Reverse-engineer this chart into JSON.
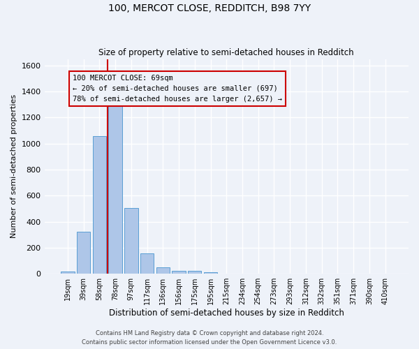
{
  "title1": "100, MERCOT CLOSE, REDDITCH, B98 7YY",
  "title2": "Size of property relative to semi-detached houses in Redditch",
  "xlabel": "Distribution of semi-detached houses by size in Redditch",
  "ylabel": "Number of semi-detached properties",
  "categories": [
    "19sqm",
    "39sqm",
    "58sqm",
    "78sqm",
    "97sqm",
    "117sqm",
    "136sqm",
    "156sqm",
    "175sqm",
    "195sqm",
    "215sqm",
    "234sqm",
    "254sqm",
    "273sqm",
    "293sqm",
    "312sqm",
    "332sqm",
    "351sqm",
    "371sqm",
    "390sqm",
    "410sqm"
  ],
  "values": [
    15,
    325,
    1055,
    1295,
    505,
    155,
    50,
    25,
    20,
    10,
    0,
    0,
    0,
    0,
    0,
    0,
    0,
    0,
    0,
    0,
    0
  ],
  "bar_color": "#aec6e8",
  "bar_edge_color": "#5a9fd4",
  "vline_x": 2.5,
  "vline_color": "#cc0000",
  "annotation_text": "100 MERCOT CLOSE: 69sqm\n← 20% of semi-detached houses are smaller (697)\n78% of semi-detached houses are larger (2,657) →",
  "annotation_box_color": "#cc0000",
  "ylim": [
    0,
    1650
  ],
  "yticks": [
    0,
    200,
    400,
    600,
    800,
    1000,
    1200,
    1400,
    1600
  ],
  "footer1": "Contains HM Land Registry data © Crown copyright and database right 2024.",
  "footer2": "Contains public sector information licensed under the Open Government Licence v3.0.",
  "background_color": "#eef2f9",
  "grid_color": "#ffffff"
}
